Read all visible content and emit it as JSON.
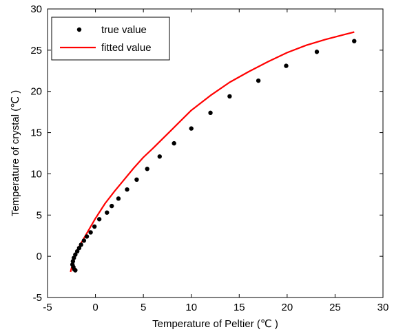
{
  "chart_data": {
    "type": "scatter",
    "title": "",
    "xlabel": "Temperature of Peltier (℃ )",
    "ylabel": "Temperature of crystal (℃ )",
    "xlim": [
      -5,
      30
    ],
    "ylim": [
      -5,
      30
    ],
    "xticks": [
      -5,
      0,
      5,
      10,
      15,
      20,
      25,
      30
    ],
    "yticks": [
      -5,
      0,
      5,
      10,
      15,
      20,
      25,
      30
    ],
    "xtick_labels": [
      "-5",
      "0",
      "5",
      "10",
      "15",
      "20",
      "25",
      "30"
    ],
    "ytick_labels": [
      "-5",
      "0",
      "5",
      "10",
      "15",
      "20",
      "25",
      "30"
    ],
    "grid": false,
    "legend": "top-left",
    "series": [
      {
        "name": "true value",
        "style": "markers",
        "color": "#000000",
        "x": [
          -2.2,
          -2.1,
          -2.3,
          -2.4,
          -2.35,
          -2.25,
          -2.1,
          -1.9,
          -1.7,
          -1.5,
          -1.2,
          -0.9,
          -0.5,
          -0.1,
          0.4,
          1.2,
          1.7,
          2.4,
          3.3,
          4.3,
          5.4,
          6.7,
          8.2,
          10.0,
          12.0,
          14.0,
          17.0,
          19.9,
          23.1,
          27.0
        ],
        "y": [
          -1.6,
          -1.7,
          -1.3,
          -1.0,
          -0.6,
          -0.2,
          0.2,
          0.6,
          1.0,
          1.4,
          1.9,
          2.4,
          2.9,
          3.6,
          4.5,
          5.3,
          6.1,
          7.0,
          8.1,
          9.3,
          10.6,
          12.1,
          13.7,
          15.5,
          17.4,
          19.4,
          21.3,
          23.1,
          24.8,
          26.1
        ]
      },
      {
        "name": "fitted value",
        "style": "line",
        "color": "#ff0000",
        "x": [
          -2.6,
          -2.4,
          -2.2,
          -2.0,
          -1.5,
          -1.0,
          0.0,
          1.0,
          2.0,
          3.0,
          4.0,
          5.0,
          6.0,
          8.0,
          10.0,
          12.0,
          14.0,
          16.0,
          18.0,
          20.0,
          22.0,
          24.0,
          26.0,
          27.0
        ],
        "y": [
          -1.9,
          -1.0,
          -0.1,
          0.5,
          1.6,
          2.6,
          4.6,
          6.4,
          7.9,
          9.3,
          10.7,
          12.0,
          13.1,
          15.4,
          17.7,
          19.5,
          21.1,
          22.4,
          23.6,
          24.7,
          25.6,
          26.3,
          26.9,
          27.2
        ]
      }
    ]
  }
}
